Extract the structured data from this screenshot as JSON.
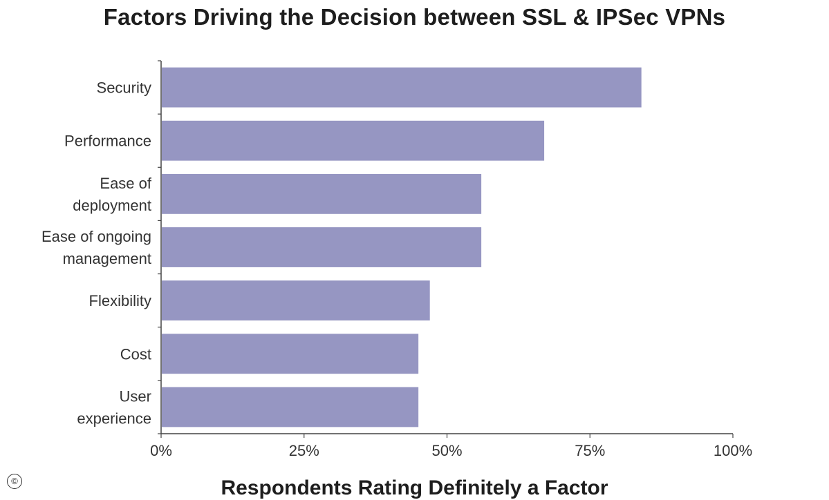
{
  "chart_data": {
    "type": "bar",
    "orientation": "horizontal",
    "title": "Factors Driving the Decision between SSL & IPSec VPNs",
    "xlabel": "Respondents Rating Definitely a Factor",
    "ylabel": "",
    "categories": [
      [
        "Security"
      ],
      [
        "Performance"
      ],
      [
        "Ease of",
        "deployment"
      ],
      [
        "Ease of ongoing",
        "management"
      ],
      [
        "Flexibility"
      ],
      [
        "Cost"
      ],
      [
        "User",
        "experience"
      ]
    ],
    "values": [
      84,
      67,
      56,
      56,
      47,
      45,
      45
    ],
    "xlim": [
      0,
      100
    ],
    "x_ticks": [
      0,
      25,
      50,
      75,
      100
    ],
    "x_tick_labels": [
      "0%",
      "25%",
      "50%",
      "75%",
      "100%"
    ],
    "bar_color": "#9696c2",
    "grid": false,
    "legend": "none"
  },
  "copyright_symbol": "©"
}
